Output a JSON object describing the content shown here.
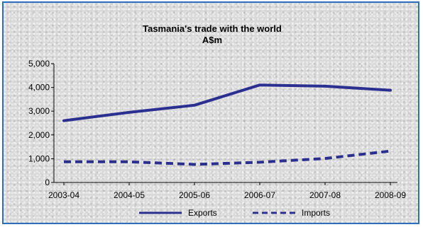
{
  "chart_data": {
    "type": "line",
    "title": "Tasmania's trade with the world",
    "subtitle": "A$m",
    "categories": [
      "2003-04",
      "2004-05",
      "2005-06",
      "2006-07",
      "2007-08",
      "2008-09"
    ],
    "series": [
      {
        "name": "Exports",
        "values": [
          2600,
          2950,
          3250,
          4100,
          4050,
          3880
        ],
        "color": "#2b2f8f",
        "style": "solid"
      },
      {
        "name": "Imports",
        "values": [
          870,
          870,
          760,
          850,
          1010,
          1320
        ],
        "color": "#2b2f8f",
        "style": "dashed"
      }
    ],
    "ylim": [
      0,
      5000
    ],
    "yticks": [
      "0",
      "1,000",
      "2,000",
      "3,000",
      "4,000",
      "5,000"
    ],
    "grid": false,
    "legend": "bottom"
  },
  "colors": {
    "border": "#2e6fbd",
    "background": "#d9d9d9",
    "series": "#2b2f8f"
  }
}
